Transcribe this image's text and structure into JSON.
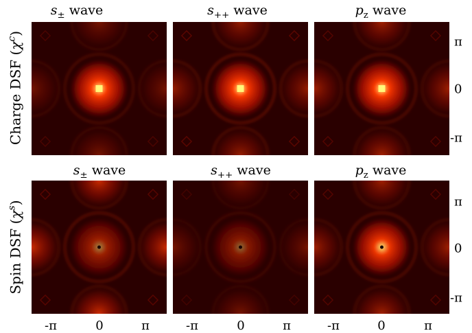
{
  "rows": [
    {
      "label": "Charge DSF (χc)",
      "label_main": "Charge DSF",
      "label_symbol": "χ",
      "label_sup": "c",
      "panels": [
        {
          "title": "s± wave",
          "symbol": "s",
          "sub": "±",
          "word": "wave",
          "center_intensity": 1.0,
          "side_intensity": 0.35,
          "ring_intensity": 0.4,
          "center_dot": false
        },
        {
          "title": "s++ wave",
          "symbol": "s",
          "sub": "++",
          "word": "wave",
          "center_intensity": 1.0,
          "side_intensity": 0.5,
          "ring_intensity": 0.6,
          "center_dot": false
        },
        {
          "title": "pz wave",
          "symbol": "p",
          "sub": "z",
          "word": "wave",
          "center_intensity": 1.0,
          "side_intensity": 0.55,
          "ring_intensity": 0.5,
          "center_dot": false
        }
      ]
    },
    {
      "label": "Spin DSF (χs)",
      "label_main": "Spin DSF",
      "label_symbol": "χ",
      "label_sup": "s",
      "panels": [
        {
          "title": "s± wave",
          "symbol": "s",
          "sub": "±",
          "word": "wave",
          "center_intensity": 0.55,
          "side_intensity": 0.75,
          "ring_intensity": 0.55,
          "center_dot": true
        },
        {
          "title": "s++ wave",
          "symbol": "s",
          "sub": "++",
          "word": "wave",
          "center_intensity": 0.45,
          "side_intensity": 0.35,
          "ring_intensity": 0.3,
          "center_dot": true
        },
        {
          "title": "pz wave",
          "symbol": "p",
          "sub": "z",
          "word": "wave",
          "center_intensity": 0.95,
          "side_intensity": 0.55,
          "ring_intensity": 0.5,
          "center_dot": true
        }
      ]
    }
  ],
  "y_ticks": [
    "π",
    "0",
    "-π"
  ],
  "x_ticks": [
    "-π",
    "0",
    "π"
  ],
  "colors": {
    "background_dark": "#2a0000",
    "mid": "#b01000",
    "bright": "#ff3a00",
    "peak": "#ffff80"
  }
}
